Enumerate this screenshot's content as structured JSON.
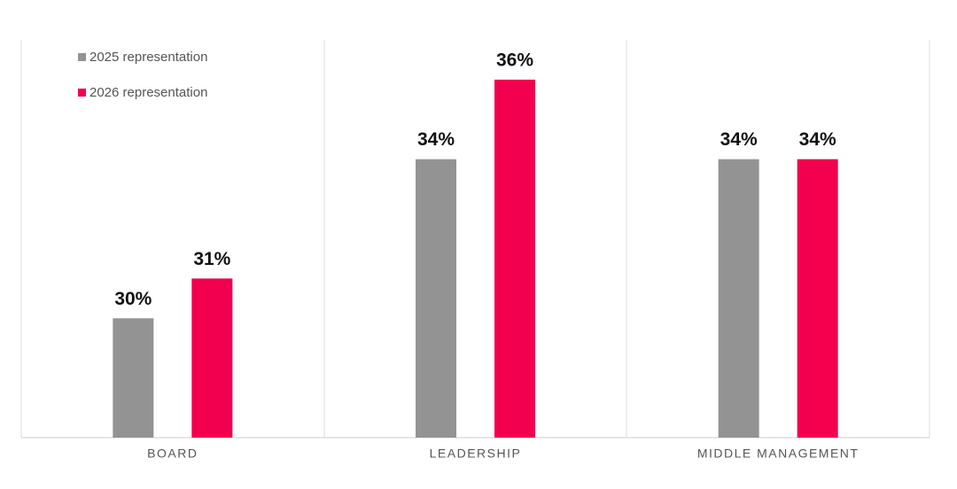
{
  "chart_data": {
    "type": "bar",
    "categories": [
      "BOARD",
      "LEADERSHIP",
      "MIDDLE MANAGEMENT"
    ],
    "series": [
      {
        "name": "2025 representation",
        "color": "#939393",
        "values": [
          30,
          34,
          34
        ],
        "value_labels": [
          "30%",
          "34%",
          "34%"
        ]
      },
      {
        "name": "2026 representation",
        "color": "#f2004f",
        "values": [
          31,
          36,
          34
        ],
        "value_labels": [
          "31%",
          "36%",
          "34%"
        ]
      }
    ],
    "ylim": [
      27,
      37
    ],
    "legend": "upper-left"
  }
}
